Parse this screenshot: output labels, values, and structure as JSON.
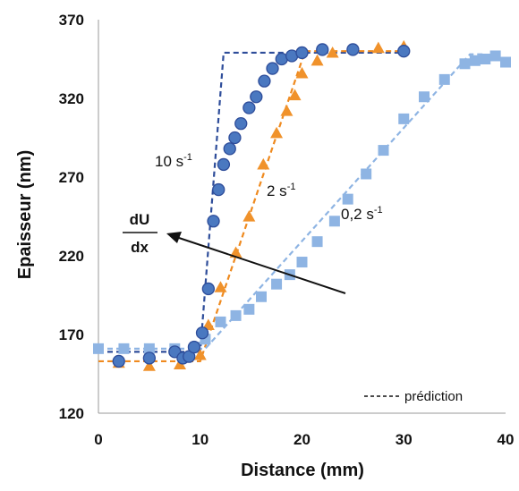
{
  "chart_data": {
    "type": "scatter",
    "xlabel": "Distance (mm)",
    "ylabel": "Epaisseur (nm)",
    "xlim": [
      0,
      40
    ],
    "ylim": [
      120,
      370
    ],
    "xticks": [
      0,
      10,
      20,
      30,
      40
    ],
    "yticks": [
      120,
      170,
      220,
      270,
      320,
      370
    ],
    "grid": false,
    "series": [
      {
        "name": "10 s⁻¹",
        "marker": "circle",
        "color": "#4a78c0",
        "points": [
          [
            2,
            153
          ],
          [
            5,
            155
          ],
          [
            7.5,
            159
          ],
          [
            8.3,
            155
          ],
          [
            8.9,
            156
          ],
          [
            9.4,
            162
          ],
          [
            10.2,
            171
          ],
          [
            10.8,
            199
          ],
          [
            11.3,
            242
          ],
          [
            11.8,
            262
          ],
          [
            12.3,
            278
          ],
          [
            12.9,
            288
          ],
          [
            13.4,
            295
          ],
          [
            14,
            304
          ],
          [
            14.8,
            314
          ],
          [
            15.5,
            321
          ],
          [
            16.3,
            331
          ],
          [
            17.1,
            339
          ],
          [
            18,
            345
          ],
          [
            19,
            347
          ],
          [
            20,
            349
          ],
          [
            22,
            351
          ],
          [
            25,
            351
          ],
          [
            30,
            350
          ]
        ]
      },
      {
        "name": "2 s⁻¹",
        "marker": "triangle",
        "color": "#f0922b",
        "points": [
          [
            2,
            152
          ],
          [
            5,
            150
          ],
          [
            8,
            151
          ],
          [
            10,
            157
          ],
          [
            10.8,
            176
          ],
          [
            12,
            200
          ],
          [
            13.5,
            222
          ],
          [
            14.8,
            245
          ],
          [
            16.2,
            278
          ],
          [
            17.5,
            298
          ],
          [
            18.5,
            312
          ],
          [
            19.3,
            322
          ],
          [
            20,
            336
          ],
          [
            21.5,
            344
          ],
          [
            23,
            349
          ],
          [
            27.5,
            352
          ],
          [
            30,
            353
          ]
        ]
      },
      {
        "name": "0,2 s⁻¹",
        "marker": "square",
        "color": "#8eb4e3",
        "points": [
          [
            0,
            161
          ],
          [
            2.5,
            161
          ],
          [
            5,
            161
          ],
          [
            7.5,
            161
          ],
          [
            9.5,
            162
          ],
          [
            10.5,
            167
          ],
          [
            12,
            178
          ],
          [
            13.5,
            182
          ],
          [
            14.8,
            186
          ],
          [
            16,
            194
          ],
          [
            17.5,
            202
          ],
          [
            18.8,
            208
          ],
          [
            20,
            216
          ],
          [
            21.5,
            229
          ],
          [
            23.2,
            242
          ],
          [
            24.5,
            256
          ],
          [
            26.3,
            272
          ],
          [
            28,
            287
          ],
          [
            30,
            307
          ],
          [
            32,
            321
          ],
          [
            34,
            332
          ],
          [
            36,
            342
          ],
          [
            37,
            344
          ],
          [
            38,
            345
          ],
          [
            39,
            347
          ],
          [
            40,
            343
          ]
        ]
      }
    ],
    "predictions": [
      {
        "series": "10 s⁻¹",
        "color": "#2e4d9a",
        "x": [
          0,
          10,
          12.3,
          30
        ],
        "y": [
          159,
          159,
          349,
          349
        ]
      },
      {
        "series": "2 s⁻¹",
        "color": "#ef8a1f",
        "x": [
          0,
          10,
          20.3,
          30
        ],
        "y": [
          153,
          153,
          350,
          350
        ]
      },
      {
        "series": "0,2 s⁻¹",
        "color": "#8eb4e3",
        "x": [
          0,
          10.5,
          36.5,
          38
        ],
        "y": [
          161,
          161,
          348,
          348
        ]
      }
    ],
    "annotations": {
      "label_10": "10 s",
      "label_2": "2 s",
      "label_02": "0,2 s",
      "superscript": "-1",
      "frac_num": "dU",
      "frac_den": "dx"
    },
    "legend": {
      "position": "bottom-right",
      "line_style": "dashed",
      "text": "prédiction"
    }
  }
}
